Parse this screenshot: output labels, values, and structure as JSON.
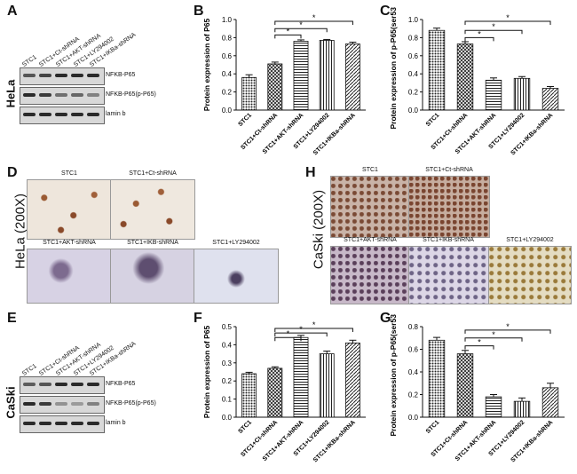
{
  "panel_letters": {
    "A": "A",
    "B": "B",
    "C": "C",
    "D": "D",
    "E": "E",
    "F": "F",
    "G": "G",
    "H": "H"
  },
  "cell_lines": {
    "hela": "HeLa",
    "caski": "CaSki",
    "hela_mag": "HeLa (200X)",
    "caski_mag": "CaSki (200X)"
  },
  "blot_A": {
    "lanes": [
      "STC1",
      "STC1+Ct-shRNA",
      "STC1+AKT-shRNA",
      "STC1+LY294002",
      "STC1+IKBa-shRNA"
    ],
    "rows": [
      "NFKB-P65",
      "NFKB-P65(p-P65)",
      "lamin b"
    ]
  },
  "blot_E": {
    "lanes": [
      "STC1",
      "STC1+Ct-shRNA",
      "STC1+AKT-shRNA",
      "STC1+LY294002",
      "STC1+IKBa-shRNA"
    ],
    "rows": [
      "NFKB-P65",
      "NFKB-P65(p-P65)",
      "lamin b"
    ]
  },
  "ihc_D": {
    "top": [
      "STC1",
      "STC1+Ct-shRNA"
    ],
    "bottom": [
      "STC1+AKT-shRNA",
      "STC1+IKB-shRNA",
      "STC1+LY294002"
    ]
  },
  "ihc_H": {
    "top": [
      "STC1",
      "STC1+Ct-shRNA"
    ],
    "bottom": [
      "STC1+AKT-shRNA",
      "STC1+IKB-shRNA",
      "STC1+LY294002"
    ]
  },
  "chart_data": [
    {
      "id": "B",
      "type": "bar",
      "ylabel": "Protein expression of P65",
      "categories": [
        "STC1",
        "STC1+Ct-shRNA",
        "STC1+AKT-shRNA",
        "STC1+LY294002",
        "STC1+IKBa-shRNA"
      ],
      "values": [
        0.36,
        0.51,
        0.76,
        0.77,
        0.73
      ],
      "errors": [
        0.03,
        0.02,
        0.015,
        0.01,
        0.02
      ],
      "ylim": [
        0,
        1.0
      ],
      "yticks": [
        "0.0",
        "0.2",
        "0.4",
        "0.6",
        "0.8",
        "1.0"
      ],
      "sig": "*"
    },
    {
      "id": "C",
      "type": "bar",
      "ylabel": "Protein expression of p-P65(ser536)",
      "categories": [
        "STC1",
        "STC1+Ct-shRNA",
        "STC1+AKT-shRNA",
        "STC1+LY294002",
        "STC1+IKBa-shRNA"
      ],
      "values": [
        0.88,
        0.73,
        0.33,
        0.35,
        0.24
      ],
      "errors": [
        0.025,
        0.025,
        0.025,
        0.02,
        0.02
      ],
      "ylim": [
        0,
        1.0
      ],
      "yticks": [
        "0.0",
        "0.2",
        "0.4",
        "0.6",
        "0.8",
        "1.0"
      ],
      "sig": "*"
    },
    {
      "id": "F",
      "type": "bar",
      "ylabel": "Protein expression of P65",
      "categories": [
        "STC1",
        "STC1+Ct-shRNA",
        "STC1+AKT-shRNA",
        "STC1+LY294002",
        "STC1+IKBa-shRNA"
      ],
      "values": [
        0.24,
        0.27,
        0.44,
        0.35,
        0.41
      ],
      "errors": [
        0.008,
        0.008,
        0.012,
        0.015,
        0.015
      ],
      "ylim": [
        0,
        0.5
      ],
      "yticks": [
        "0.0",
        "0.1",
        "0.2",
        "0.3",
        "0.4",
        "0.5"
      ],
      "sig": "*"
    },
    {
      "id": "G",
      "type": "bar",
      "ylabel": "Protein expression of p-P65(ser536)",
      "categories": [
        "STC1",
        "STC1+Ct-shRNA",
        "STC1+AKT-shRNA",
        "STC1+LY294002",
        "STC1+IKBa-shRNA"
      ],
      "values": [
        0.68,
        0.56,
        0.18,
        0.14,
        0.26
      ],
      "errors": [
        0.025,
        0.03,
        0.02,
        0.03,
        0.04
      ],
      "ylim": [
        0,
        0.8
      ],
      "yticks": [
        "0.0",
        "0.2",
        "0.4",
        "0.6",
        "0.8"
      ],
      "sig": "*"
    }
  ]
}
